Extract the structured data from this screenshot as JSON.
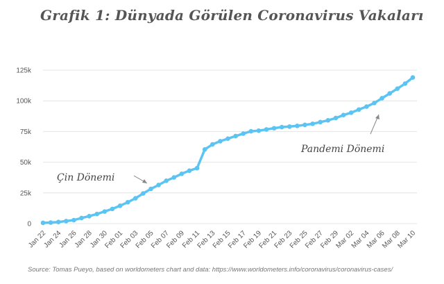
{
  "title": "Grafik 1: Dünyada Görülen Coronavirus Vakaları",
  "source": "Source: Tomas Pueyo, based on worldometers chart and data: https://www.worldometers.info/coronavirus/coronavirus-cases/",
  "colors": {
    "line": "#5cc4f2",
    "grid": "#e4e4e4",
    "text": "#555555"
  },
  "chart_data": {
    "type": "line",
    "title": "Grafik 1: Dünyada Görülen Coronavirus Vakaları",
    "xlabel": "",
    "ylabel": "",
    "ylim": [
      0,
      125000
    ],
    "yticks": [
      0,
      25000,
      50000,
      75000,
      100000,
      125000
    ],
    "ytick_labels": [
      "0",
      "25k",
      "50k",
      "75k",
      "100k",
      "125k"
    ],
    "x_tick_labels": [
      "Jan 22",
      "Jan 24",
      "Jan 26",
      "Jan 28",
      "Jan 30",
      "Feb 01",
      "Feb 03",
      "Feb 05",
      "Feb 07",
      "Feb 09",
      "Feb 11",
      "Feb 13",
      "Feb 15",
      "Feb 17",
      "Feb 19",
      "Feb 21",
      "Feb 23",
      "Feb 25",
      "Feb 27",
      "Feb 29",
      "Mar 02",
      "Mar 04",
      "Mar 06",
      "Mar 08",
      "Mar 10"
    ],
    "grid": true,
    "series": [
      {
        "x": [
          "Jan 22",
          "Jan 23",
          "Jan 24",
          "Jan 25",
          "Jan 26",
          "Jan 27",
          "Jan 28",
          "Jan 29",
          "Jan 30",
          "Jan 31",
          "Feb 01",
          "Feb 02",
          "Feb 03",
          "Feb 04",
          "Feb 05",
          "Feb 06",
          "Feb 07",
          "Feb 08",
          "Feb 09",
          "Feb 10",
          "Feb 11",
          "Feb 12",
          "Feb 13",
          "Feb 14",
          "Feb 15",
          "Feb 16",
          "Feb 17",
          "Feb 18",
          "Feb 19",
          "Feb 20",
          "Feb 21",
          "Feb 22",
          "Feb 23",
          "Feb 24",
          "Feb 25",
          "Feb 26",
          "Feb 27",
          "Feb 28",
          "Feb 29",
          "Mar 01",
          "Mar 02",
          "Mar 03",
          "Mar 04",
          "Mar 05",
          "Mar 06",
          "Mar 07",
          "Mar 08",
          "Mar 09",
          "Mar 10"
        ],
        "values": [
          580,
          845,
          1320,
          2010,
          2800,
          4580,
          6060,
          7820,
          9830,
          11950,
          14550,
          17390,
          20630,
          24550,
          28280,
          31440,
          34880,
          37560,
          40550,
          43100,
          45170,
          60380,
          64540,
          67100,
          69200,
          71300,
          73300,
          75200,
          75700,
          76700,
          77700,
          78600,
          79000,
          79600,
          80400,
          81300,
          82700,
          84100,
          86000,
          88400,
          90300,
          92900,
          95300,
          98200,
          102100,
          106000,
          109900,
          114000,
          119000
        ]
      }
    ],
    "annotations": [
      {
        "text": "Çin Dönemi",
        "x": "Feb 04",
        "y": 28000
      },
      {
        "text": "Pandemi Dönemi",
        "x": "Mar 06",
        "y": 92000
      }
    ]
  }
}
